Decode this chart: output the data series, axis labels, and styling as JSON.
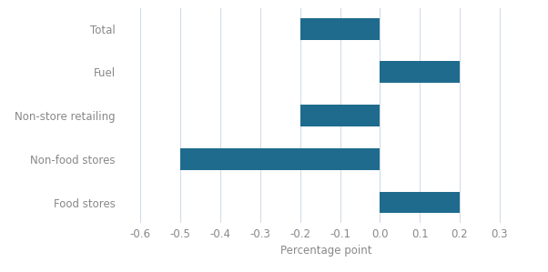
{
  "categories": [
    "Food stores",
    "Non-food stores",
    "Non-store retailing",
    "Fuel",
    "Total"
  ],
  "values": [
    0.2,
    -0.5,
    -0.2,
    0.2,
    -0.2
  ],
  "bar_color": "#1f6b8e",
  "xlim": [
    -0.65,
    0.38
  ],
  "xticks": [
    -0.6,
    -0.5,
    -0.4,
    -0.3,
    -0.2,
    -0.1,
    0.0,
    0.1,
    0.2,
    0.3
  ],
  "xlabel": "Percentage point",
  "background_color": "#ffffff",
  "grid_color": "#d5dce6",
  "label_color": "#888888",
  "label_fontsize": 8.5,
  "xlabel_fontsize": 8.5,
  "bar_height": 0.5
}
